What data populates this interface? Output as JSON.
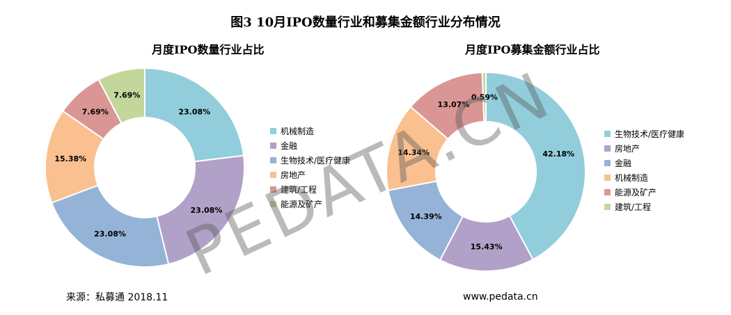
{
  "title": "图3 10月IPO数量行业和募集金额行业分布情况",
  "source_note": "来源：私募通 2018.11",
  "website": "www.pedata.cn",
  "watermark": "PEDATA.CN",
  "chart_data": [
    {
      "type": "pie",
      "donut": true,
      "title": "月度IPO数量行业占比",
      "categories": [
        "机械制造",
        "金融",
        "生物技术/医疗健康",
        "房地产",
        "建筑/工程",
        "能源及矿产"
      ],
      "values": [
        23.08,
        23.08,
        23.08,
        15.38,
        7.69,
        7.69
      ],
      "labels": [
        "23.08%",
        "23.08%",
        "23.08%",
        "15.38%",
        "7.69%",
        "7.69%"
      ],
      "colors": [
        "#92cddc",
        "#b1a0c7",
        "#95b3d7",
        "#fac090",
        "#da9694",
        "#c4d79b"
      ],
      "legend_position": "right"
    },
    {
      "type": "pie",
      "donut": true,
      "title": "月度IPO募集金额行业占比",
      "categories": [
        "生物技术/医疗健康",
        "房地产",
        "金融",
        "机械制造",
        "能源及矿产",
        "建筑/工程"
      ],
      "values": [
        42.18,
        15.43,
        14.39,
        14.34,
        13.07,
        0.59
      ],
      "labels": [
        "42.18%",
        "15.43%",
        "14.39%",
        "14.34%",
        "13.07%",
        "0.59%"
      ],
      "colors": [
        "#92cddc",
        "#b1a0c7",
        "#95b3d7",
        "#fac090",
        "#da9694",
        "#c4d79b"
      ],
      "legend_position": "right"
    }
  ]
}
